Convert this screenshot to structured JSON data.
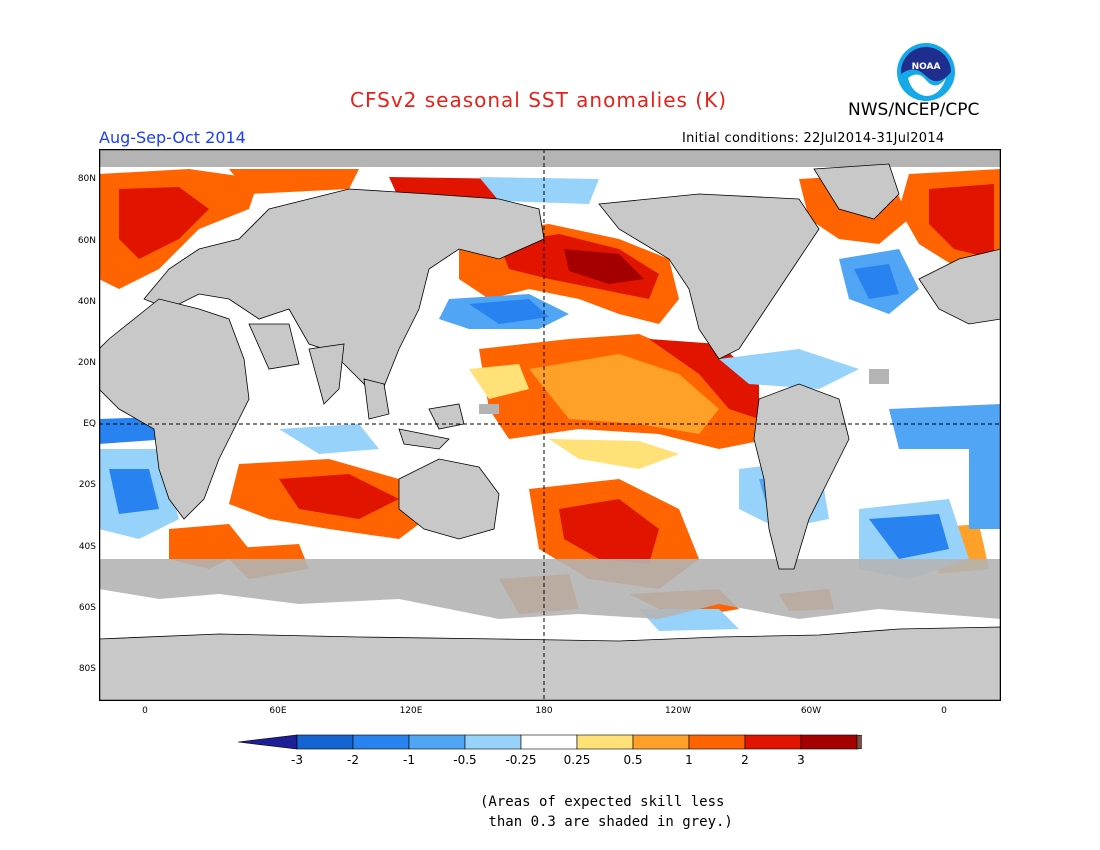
{
  "header": {
    "title": "CFSv2 seasonal SST anomalies (K)",
    "agency": "NWS/NCEP/CPC",
    "logo_text": "NOAA",
    "period": "Aug-Sep-Oct 2014",
    "initial_conditions": "Initial conditions: 22Jul2014-31Jul2014"
  },
  "map": {
    "lat_labels": [
      "80N",
      "60N",
      "40N",
      "20N",
      "EQ",
      "20S",
      "40S",
      "60S",
      "80S"
    ],
    "lon_labels": [
      "0",
      "60E",
      "120E",
      "180",
      "120W",
      "60W",
      "0"
    ],
    "land_color": "#c8c8c8",
    "grey_skill_color": "#b4b4b4"
  },
  "colorbar": {
    "labels": [
      "-3",
      "-2",
      "-1",
      "-0.5",
      "-0.25",
      "0.25",
      "0.5",
      "1",
      "2",
      "3"
    ],
    "colors": [
      "#1e1e96",
      "#1464d2",
      "#2882f0",
      "#50a5f5",
      "#96d2fa",
      "#ffffff",
      "#ffe178",
      "#ffa028",
      "#ff6400",
      "#e11400",
      "#a50000",
      "#785046"
    ]
  },
  "note": {
    "line1": "(Areas of expected skill less",
    "line2": " than 0.3 are shaded in grey.)"
  }
}
